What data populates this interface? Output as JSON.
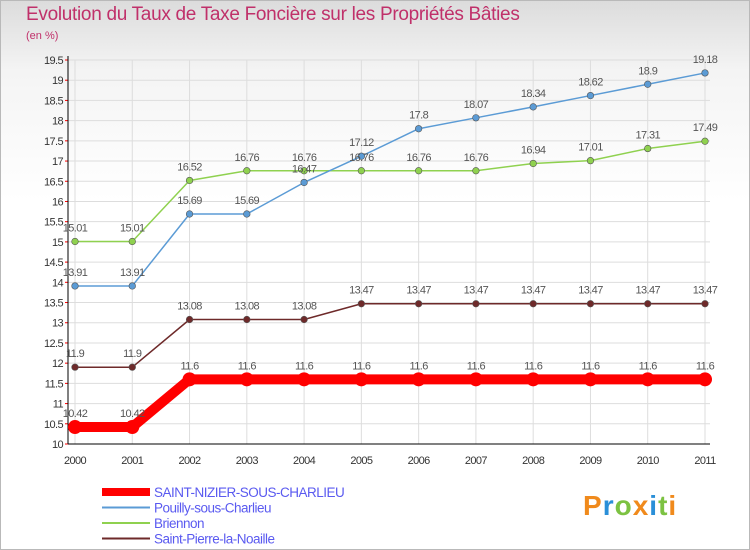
{
  "title": "Evolution du Taux de Taxe Foncière sur les Propriétés Bâties",
  "subtitle": "(en %)",
  "logo": "Proxiti",
  "colors": {
    "title": "#c0306a",
    "legend_text": "#5a5af0",
    "grid": "#dddddd",
    "axis": "#000000"
  },
  "chart_data": {
    "type": "line",
    "title": "Evolution du Taux de Taxe Foncière sur les Propriétés Bâties",
    "ylabel": "(en %)",
    "xlabel": "",
    "ylim": [
      10,
      19.5
    ],
    "y_ticks": [
      "10",
      "10.5",
      "11",
      "11.5",
      "12",
      "12.5",
      "13",
      "13.5",
      "14",
      "14.5",
      "15",
      "15.5",
      "16",
      "16.5",
      "17",
      "17.5",
      "18",
      "18.5",
      "19",
      "19.5"
    ],
    "x": [
      "2000",
      "2001",
      "2002",
      "2003",
      "2004",
      "2005",
      "2006",
      "2007",
      "2008",
      "2009",
      "2010",
      "2011"
    ],
    "legend_position": "bottom-left",
    "series": [
      {
        "name": "SAINT-NIZIER-SOUS-CHARLIEU",
        "color": "#ff0000",
        "values": [
          10.42,
          10.42,
          11.6,
          11.6,
          11.6,
          11.6,
          11.6,
          11.6,
          11.6,
          11.6,
          11.6,
          11.6
        ],
        "labels": [
          "10.42",
          "10.42",
          "11.6",
          "11.6",
          "11.6",
          "11.6",
          "11.6",
          "11.6",
          "11.6",
          "11.6",
          "11.6",
          "11.6"
        ]
      },
      {
        "name": "Pouilly-sous-Charlieu",
        "color": "#5b9bd5",
        "values": [
          13.91,
          13.91,
          15.69,
          15.69,
          16.47,
          17.12,
          17.8,
          18.07,
          18.34,
          18.62,
          18.9,
          19.18
        ],
        "labels": [
          "13.91",
          "13.91",
          "15.69",
          "15.69",
          "16.47",
          "17.12",
          "17.8",
          "18.07",
          "18.34",
          "18.62",
          "18.9",
          "19.18"
        ]
      },
      {
        "name": "Briennon",
        "color": "#8fd14f",
        "values": [
          15.01,
          15.01,
          16.52,
          16.76,
          16.76,
          16.76,
          16.76,
          16.76,
          16.94,
          17.01,
          17.31,
          17.49
        ],
        "labels": [
          "15.01",
          "15.01",
          "16.52",
          "16.76",
          "16.76",
          "16.76",
          "16.76",
          "16.76",
          "16.94",
          "17.01",
          "17.31",
          "17.49"
        ]
      },
      {
        "name": "Saint-Pierre-la-Noaille",
        "color": "#6e2a2a",
        "values": [
          11.9,
          11.9,
          13.08,
          13.08,
          13.08,
          13.47,
          13.47,
          13.47,
          13.47,
          13.47,
          13.47,
          13.47
        ],
        "labels": [
          "11.9",
          "11.9",
          "13.08",
          "13.08",
          "13.08",
          "13.47",
          "13.47",
          "13.47",
          "13.47",
          "13.47",
          "13.47",
          "13.47"
        ]
      }
    ]
  }
}
